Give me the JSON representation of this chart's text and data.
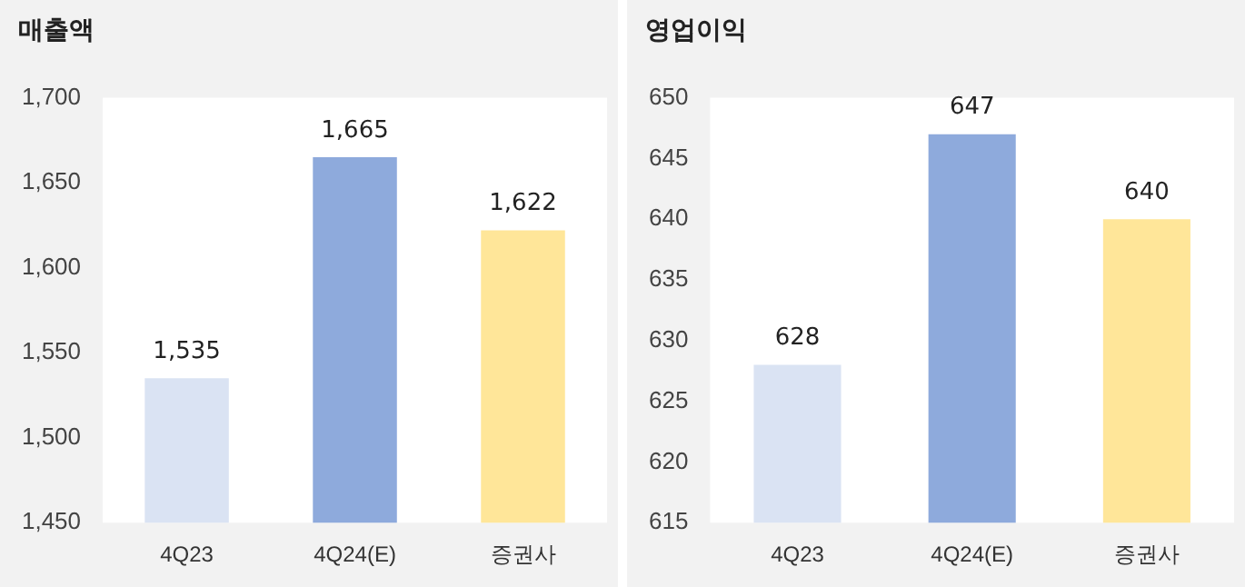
{
  "chart_data": [
    {
      "type": "bar",
      "title": "매출액",
      "categories": [
        "4Q23",
        "4Q24(E)",
        "증권사"
      ],
      "values": [
        1535,
        1665,
        1622
      ],
      "colors": [
        "#dae3f3",
        "#8eaadc",
        "#ffe699"
      ],
      "ylim": [
        1450,
        1700
      ],
      "yticks": [
        {
          "value": 1450,
          "label": "1,450"
        },
        {
          "value": 1500,
          "label": "1,500"
        },
        {
          "value": 1550,
          "label": "1,550"
        },
        {
          "value": 1600,
          "label": "1,600"
        },
        {
          "value": 1650,
          "label": "1,650"
        },
        {
          "value": 1700,
          "label": "1,700"
        }
      ],
      "data_labels": true,
      "value_labels": [
        "1,535",
        "1,665",
        "1,622"
      ]
    },
    {
      "type": "bar",
      "title": "영업이익",
      "categories": [
        "4Q23",
        "4Q24(E)",
        "증권사"
      ],
      "values": [
        628,
        647,
        640
      ],
      "colors": [
        "#dae3f3",
        "#8eaadc",
        "#ffe699"
      ],
      "ylim": [
        615,
        650
      ],
      "yticks": [
        615,
        620,
        625,
        630,
        635,
        640,
        645,
        650
      ],
      "data_labels": true
    }
  ]
}
